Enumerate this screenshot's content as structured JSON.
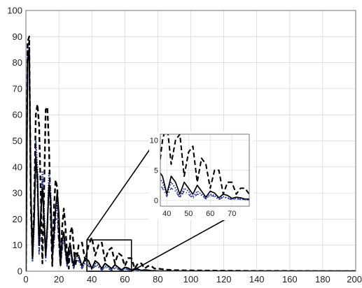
{
  "chart_data": {
    "type": "line",
    "title": "",
    "xlabel": "",
    "ylabel": "",
    "xlim": [
      0,
      200
    ],
    "ylim": [
      0,
      100
    ],
    "xticks": [
      0,
      20,
      40,
      60,
      80,
      100,
      120,
      140,
      160,
      180,
      200
    ],
    "yticks": [
      0,
      10,
      20,
      30,
      40,
      50,
      60,
      70,
      80,
      90,
      100
    ],
    "grid": true,
    "legend": "none",
    "series": [
      {
        "style": "dashed",
        "color": "#000000",
        "x": [
          0,
          1,
          2,
          3,
          4,
          5,
          6,
          7,
          8,
          9,
          10,
          11,
          12,
          13,
          14,
          15,
          16,
          17,
          18,
          19,
          20,
          21,
          22,
          23,
          24,
          25,
          26,
          27,
          28,
          29,
          30,
          32,
          34,
          36,
          38,
          40,
          42,
          44,
          46,
          48,
          50,
          52,
          54,
          56,
          58,
          60,
          62,
          64,
          66,
          68,
          70,
          72,
          74,
          76,
          78,
          80,
          85,
          90,
          100,
          120,
          140,
          160,
          180,
          200
        ],
        "y": [
          0,
          88,
          90,
          25,
          6,
          25,
          60,
          64,
          56,
          30,
          3,
          30,
          62,
          63,
          48,
          22,
          2,
          24,
          35,
          32,
          14,
          2,
          17,
          24,
          17,
          6,
          1,
          15,
          17,
          9,
          2,
          10,
          11,
          4,
          10,
          13,
          6,
          10,
          11,
          4,
          8,
          9,
          3,
          7,
          6,
          2,
          5,
          5,
          1,
          3,
          3,
          1,
          2,
          2,
          1,
          1,
          0.6,
          0.4,
          0.3,
          0.2,
          0.1,
          0.1,
          0.05,
          0
        ]
      },
      {
        "style": "solid",
        "color": "#000000",
        "x": [
          0,
          1,
          2,
          3,
          4,
          5,
          6,
          7,
          8,
          9,
          10,
          11,
          12,
          13,
          14,
          15,
          16,
          17,
          18,
          19,
          20,
          21,
          22,
          23,
          24,
          25,
          26,
          27,
          28,
          29,
          30,
          32,
          34,
          36,
          38,
          40,
          42,
          44,
          46,
          48,
          50,
          52,
          54,
          56,
          58,
          60,
          62,
          64,
          66,
          68,
          70,
          72,
          74,
          76,
          78,
          80,
          90,
          100,
          120,
          140,
          160,
          180,
          200
        ],
        "y": [
          0,
          80,
          85,
          30,
          5,
          20,
          44,
          36,
          10,
          22,
          32,
          20,
          6,
          18,
          33,
          28,
          8,
          14,
          24,
          30,
          22,
          4,
          12,
          15,
          8,
          3,
          9,
          10,
          5,
          2,
          7,
          6,
          2,
          5,
          4,
          1,
          4,
          3,
          1,
          3,
          2,
          1,
          2.5,
          1.5,
          0.5,
          1.5,
          1.2,
          0.4,
          1,
          0.8,
          0.3,
          0.5,
          0.4,
          0.2,
          0.2,
          0.1,
          0.05,
          0.05,
          0.05,
          0.05,
          0.05,
          0.05,
          0.05
        ]
      },
      {
        "style": "dotted",
        "color": "#1a2ca8",
        "x": [
          0,
          1,
          2,
          3,
          4,
          5,
          6,
          7,
          8,
          9,
          10,
          11,
          12,
          13,
          14,
          15,
          16,
          17,
          18,
          19,
          20,
          21,
          22,
          23,
          24,
          25,
          26,
          27,
          28,
          29,
          30,
          32,
          34,
          36,
          38,
          40,
          42,
          44,
          46,
          48,
          50,
          52,
          54,
          56,
          58,
          60,
          62,
          64,
          66,
          68,
          70,
          72,
          74,
          76,
          78,
          80,
          90,
          100,
          120,
          140,
          160,
          180,
          200
        ],
        "y": [
          0,
          86,
          88,
          30,
          4,
          18,
          50,
          40,
          8,
          20,
          38,
          24,
          5,
          16,
          38,
          30,
          6,
          12,
          22,
          26,
          14,
          3,
          10,
          14,
          8,
          2,
          7,
          9,
          4,
          1,
          5,
          5,
          1,
          4,
          3,
          1,
          3,
          2,
          0.5,
          2,
          1.5,
          0.5,
          1.5,
          1,
          0.3,
          1,
          0.8,
          0.2,
          0.6,
          0.4,
          0.2,
          0.3,
          0.2,
          0.1,
          0.1,
          0.05,
          0.03,
          0.02,
          0.02,
          0.02,
          0.02,
          0.02,
          0.02
        ]
      },
      {
        "style": "dashdot",
        "color": "#2b3fa0",
        "x": [
          0,
          1,
          2,
          3,
          4,
          5,
          6,
          7,
          8,
          9,
          10,
          11,
          12,
          13,
          14,
          15,
          16,
          17,
          18,
          19,
          20,
          21,
          22,
          23,
          24,
          25,
          26,
          27,
          28,
          29,
          30,
          32,
          34,
          36,
          38,
          40,
          42,
          44,
          46,
          48,
          50,
          52,
          54,
          56,
          58,
          60,
          62,
          64,
          66,
          68,
          70,
          72,
          74,
          76,
          78,
          80,
          90,
          100,
          120,
          140,
          160,
          180,
          200
        ],
        "y": [
          0,
          84,
          86,
          28,
          5,
          22,
          46,
          30,
          6,
          18,
          36,
          18,
          4,
          14,
          34,
          22,
          5,
          10,
          20,
          20,
          10,
          2,
          8,
          12,
          6,
          2,
          6,
          7,
          3,
          1,
          4,
          4,
          1,
          3,
          2,
          0.6,
          2,
          1.5,
          0.4,
          1.5,
          1,
          0.3,
          1,
          0.8,
          0.2,
          0.8,
          0.6,
          0.1,
          0.5,
          0.3,
          0.1,
          0.2,
          0.15,
          0.1,
          0.05,
          0.03,
          0.02,
          0.02,
          0.02,
          0.02,
          0.02,
          0.02,
          0.02
        ]
      }
    ],
    "zoom_box": {
      "xrange": [
        37,
        64
      ],
      "yrange": [
        0,
        12
      ]
    },
    "inset": {
      "xlim": [
        37,
        78
      ],
      "ylim": [
        -1,
        11
      ],
      "xticks": [
        40,
        50,
        60,
        70
      ],
      "yticks": [
        0,
        5,
        10
      ],
      "grid": true
    }
  }
}
